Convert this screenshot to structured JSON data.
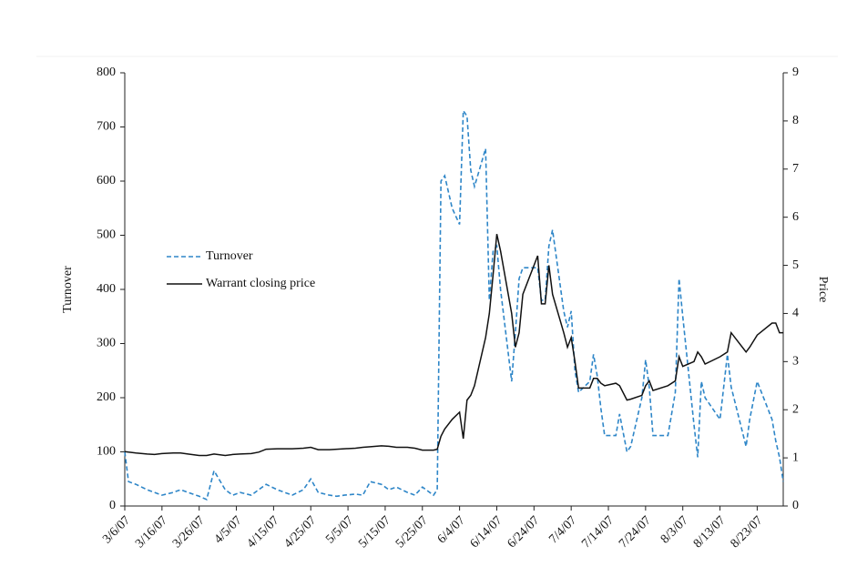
{
  "chart_data": {
    "type": "line",
    "x": [
      "3/6/07",
      "3/7/07",
      "3/9/07",
      "3/12/07",
      "3/14/07",
      "3/16/07",
      "3/19/07",
      "3/21/07",
      "3/23/07",
      "3/26/07",
      "3/28/07",
      "3/30/07",
      "4/2/07",
      "4/4/07",
      "4/6/07",
      "4/9/07",
      "4/11/07",
      "4/13/07",
      "4/16/07",
      "4/18/07",
      "4/20/07",
      "4/23/07",
      "4/25/07",
      "4/27/07",
      "4/30/07",
      "5/2/07",
      "5/4/07",
      "5/7/07",
      "5/9/07",
      "5/11/07",
      "5/14/07",
      "5/16/07",
      "5/18/07",
      "5/21/07",
      "5/23/07",
      "5/25/07",
      "5/28/07",
      "5/29/07",
      "5/30/07",
      "5/31/07",
      "6/2/07",
      "6/4/07",
      "6/5/07",
      "6/6/07",
      "6/7/07",
      "6/8/07",
      "6/11/07",
      "6/12/07",
      "6/13/07",
      "6/14/07",
      "6/15/07",
      "6/18/07",
      "6/19/07",
      "6/20/07",
      "6/21/07",
      "6/25/07",
      "6/26/07",
      "6/27/07",
      "6/28/07",
      "6/29/07",
      "7/2/07",
      "7/3/07",
      "7/4/07",
      "7/5/07",
      "7/6/07",
      "7/9/07",
      "7/10/07",
      "7/11/07",
      "7/12/07",
      "7/13/07",
      "7/16/07",
      "7/17/07",
      "7/19/07",
      "7/20/07",
      "7/23/07",
      "7/24/07",
      "7/25/07",
      "7/26/07",
      "7/30/07",
      "8/1/07",
      "8/2/07",
      "8/3/07",
      "8/6/07",
      "8/7/07",
      "8/8/07",
      "8/9/07",
      "8/13/07",
      "8/15/07",
      "8/16/07",
      "8/20/07",
      "8/21/07",
      "8/23/07",
      "8/27/07",
      "8/28/07",
      "8/29/07",
      "8/30/07"
    ],
    "series": [
      {
        "name": "Turnover",
        "color": "#2e86c8",
        "dash": true,
        "values": [
          100,
          45,
          40,
          30,
          25,
          20,
          25,
          30,
          25,
          18,
          12,
          65,
          30,
          20,
          25,
          20,
          30,
          40,
          30,
          25,
          20,
          30,
          50,
          25,
          20,
          18,
          20,
          22,
          20,
          45,
          40,
          30,
          35,
          25,
          20,
          35,
          20,
          30,
          600,
          610,
          550,
          520,
          730,
          720,
          620,
          590,
          660,
          380,
          470,
          480,
          400,
          230,
          320,
          420,
          440,
          440,
          380,
          380,
          480,
          510,
          360,
          330,
          360,
          250,
          210,
          230,
          280,
          240,
          180,
          130,
          130,
          170,
          100,
          110,
          200,
          270,
          220,
          130,
          130,
          210,
          420,
          350,
          150,
          90,
          230,
          200,
          160,
          280,
          220,
          110,
          160,
          230,
          160,
          120,
          90,
          45
        ]
      },
      {
        "name": "Warrant closing price",
        "color": "#111111",
        "axis": "y2",
        "values": [
          1.13,
          1.12,
          1.1,
          1.08,
          1.07,
          1.09,
          1.1,
          1.1,
          1.08,
          1.05,
          1.05,
          1.08,
          1.05,
          1.07,
          1.08,
          1.09,
          1.12,
          1.18,
          1.19,
          1.19,
          1.19,
          1.2,
          1.22,
          1.17,
          1.17,
          1.18,
          1.19,
          1.2,
          1.22,
          1.23,
          1.25,
          1.24,
          1.22,
          1.22,
          1.2,
          1.16,
          1.16,
          1.18,
          1.45,
          1.6,
          1.8,
          1.95,
          1.4,
          2.2,
          2.3,
          2.5,
          3.5,
          4.0,
          4.8,
          5.65,
          5.3,
          4.0,
          3.3,
          3.6,
          4.4,
          5.2,
          4.2,
          4.2,
          5.0,
          4.4,
          3.6,
          3.3,
          3.5,
          3.0,
          2.45,
          2.45,
          2.65,
          2.65,
          2.55,
          2.5,
          2.55,
          2.5,
          2.2,
          2.22,
          2.3,
          2.5,
          2.6,
          2.4,
          2.5,
          2.6,
          3.1,
          2.9,
          3.0,
          3.2,
          3.1,
          2.95,
          3.1,
          3.2,
          3.6,
          3.2,
          3.3,
          3.55,
          3.8,
          3.8,
          3.6,
          3.6
        ]
      }
    ],
    "xlim": [
      "3/6/07",
      "8/30/07"
    ],
    "xticks": [
      "3/6/07",
      "3/16/07",
      "3/26/07",
      "4/5/07",
      "4/15/07",
      "4/25/07",
      "5/5/07",
      "5/15/07",
      "5/25/07",
      "6/4/07",
      "6/14/07",
      "6/24/07",
      "7/4/07",
      "7/14/07",
      "7/24/07",
      "8/3/07",
      "8/13/07",
      "8/23/07"
    ],
    "ylabel": "Turnover",
    "ylim": [
      0,
      800
    ],
    "yticks": [
      0,
      100,
      200,
      300,
      400,
      500,
      600,
      700,
      800
    ],
    "y2label": "Price",
    "y2lim": [
      0,
      9
    ],
    "y2ticks": [
      0,
      1,
      2,
      3,
      4,
      5,
      6,
      7,
      8,
      9
    ],
    "legend": "left"
  }
}
